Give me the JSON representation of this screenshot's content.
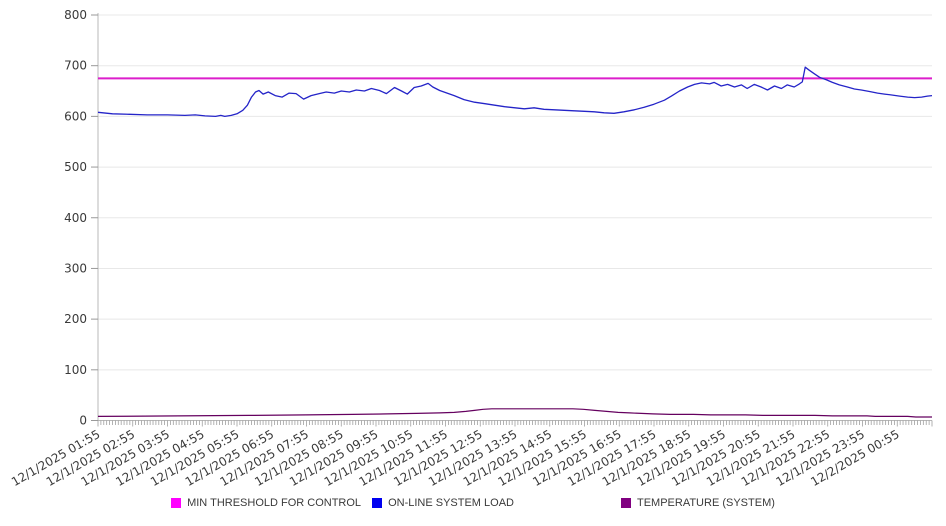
{
  "chart_data": {
    "type": "line",
    "title": "",
    "grid": "horizontal",
    "legend_position": "bottom",
    "y_axis": {
      "min": 0,
      "max": 800,
      "step": 100,
      "tick_labels": [
        "0",
        "100",
        "200",
        "300",
        "400",
        "500",
        "600",
        "700",
        "800"
      ]
    },
    "x_axis": {
      "span_minutes": 1440,
      "minor_tick_minutes": 5,
      "labels": [
        "12/1/2025 01:55",
        "12/1/2025 02:55",
        "12/1/2025 03:55",
        "12/1/2025 04:55",
        "12/1/2025 05:55",
        "12/1/2025 06:55",
        "12/1/2025 07:55",
        "12/1/2025 08:55",
        "12/1/2025 09:55",
        "12/1/2025 10:55",
        "12/1/2025 11:55",
        "12/1/2025 12:55",
        "12/1/2025 13:55",
        "12/1/2025 14:55",
        "12/1/2025 15:55",
        "12/1/2025 16:55",
        "12/1/2025 17:55",
        "12/1/2025 18:55",
        "12/1/2025 19:55",
        "12/1/2025 20:55",
        "12/1/2025 21:55",
        "12/1/2025 22:55",
        "12/1/2025 23:55",
        "12/2/2025 00:55"
      ]
    },
    "series": [
      {
        "name": "MIN THRESHOLD FOR CONTROL",
        "kind": "threshold",
        "value": 675,
        "line_color": "#dc1ecb",
        "swatch_color": "#ff00ff",
        "line_width": 2
      },
      {
        "name": "ON-LINE SYSTEM LOAD",
        "kind": "line",
        "line_color": "#2424c8",
        "swatch_color": "#0000f0",
        "line_width": 1.3,
        "points": [
          [
            0,
            608
          ],
          [
            25,
            605
          ],
          [
            55,
            604
          ],
          [
            85,
            603
          ],
          [
            120,
            603
          ],
          [
            150,
            602
          ],
          [
            168,
            603
          ],
          [
            185,
            601
          ],
          [
            203,
            600
          ],
          [
            212,
            602
          ],
          [
            219,
            600
          ],
          [
            230,
            602
          ],
          [
            240,
            605
          ],
          [
            250,
            612
          ],
          [
            258,
            622
          ],
          [
            265,
            638
          ],
          [
            272,
            648
          ],
          [
            278,
            651
          ],
          [
            285,
            644
          ],
          [
            294,
            648
          ],
          [
            306,
            641
          ],
          [
            318,
            638
          ],
          [
            330,
            646
          ],
          [
            342,
            645
          ],
          [
            355,
            634
          ],
          [
            368,
            641
          ],
          [
            382,
            645
          ],
          [
            394,
            648
          ],
          [
            408,
            646
          ],
          [
            420,
            650
          ],
          [
            434,
            648
          ],
          [
            446,
            652
          ],
          [
            460,
            650
          ],
          [
            472,
            655
          ],
          [
            486,
            651
          ],
          [
            498,
            645
          ],
          [
            512,
            657
          ],
          [
            524,
            650
          ],
          [
            534,
            644
          ],
          [
            546,
            657
          ],
          [
            558,
            660
          ],
          [
            570,
            665
          ],
          [
            578,
            658
          ],
          [
            590,
            651
          ],
          [
            615,
            641
          ],
          [
            632,
            633
          ],
          [
            650,
            628
          ],
          [
            668,
            625
          ],
          [
            685,
            622
          ],
          [
            702,
            619
          ],
          [
            720,
            617
          ],
          [
            736,
            615
          ],
          [
            753,
            617
          ],
          [
            770,
            614
          ],
          [
            788,
            613
          ],
          [
            805,
            612
          ],
          [
            822,
            611
          ],
          [
            840,
            610
          ],
          [
            857,
            609
          ],
          [
            874,
            607
          ],
          [
            891,
            606
          ],
          [
            908,
            609
          ],
          [
            926,
            613
          ],
          [
            943,
            618
          ],
          [
            960,
            624
          ],
          [
            978,
            632
          ],
          [
            990,
            640
          ],
          [
            1004,
            650
          ],
          [
            1018,
            658
          ],
          [
            1030,
            663
          ],
          [
            1042,
            666
          ],
          [
            1056,
            664
          ],
          [
            1064,
            667
          ],
          [
            1076,
            660
          ],
          [
            1087,
            663
          ],
          [
            1099,
            658
          ],
          [
            1111,
            662
          ],
          [
            1121,
            655
          ],
          [
            1133,
            663
          ],
          [
            1145,
            658
          ],
          [
            1156,
            652
          ],
          [
            1168,
            660
          ],
          [
            1180,
            655
          ],
          [
            1190,
            662
          ],
          [
            1202,
            658
          ],
          [
            1211,
            664
          ],
          [
            1216,
            668
          ],
          [
            1221,
            697
          ],
          [
            1228,
            691
          ],
          [
            1237,
            684
          ],
          [
            1246,
            677
          ],
          [
            1258,
            672
          ],
          [
            1268,
            667
          ],
          [
            1280,
            662
          ],
          [
            1294,
            658
          ],
          [
            1306,
            654
          ],
          [
            1318,
            652
          ],
          [
            1332,
            649
          ],
          [
            1346,
            646
          ],
          [
            1358,
            644
          ],
          [
            1372,
            642
          ],
          [
            1384,
            640
          ],
          [
            1398,
            638
          ],
          [
            1410,
            637
          ],
          [
            1422,
            638
          ],
          [
            1432,
            640
          ],
          [
            1440,
            641
          ]
        ]
      },
      {
        "name": "TEMPERATURE (SYSTEM)",
        "kind": "line",
        "line_color": "#65005f",
        "swatch_color": "#800080",
        "line_width": 1.2,
        "points": [
          [
            0,
            8
          ],
          [
            140,
            9
          ],
          [
            260,
            10
          ],
          [
            360,
            11
          ],
          [
            440,
            12
          ],
          [
            500,
            13
          ],
          [
            550,
            14
          ],
          [
            590,
            15
          ],
          [
            615,
            16
          ],
          [
            635,
            18
          ],
          [
            650,
            20
          ],
          [
            665,
            22
          ],
          [
            680,
            23
          ],
          [
            820,
            23
          ],
          [
            838,
            22
          ],
          [
            858,
            20
          ],
          [
            878,
            18
          ],
          [
            898,
            16
          ],
          [
            918,
            15
          ],
          [
            938,
            14
          ],
          [
            958,
            13
          ],
          [
            988,
            12
          ],
          [
            1028,
            12
          ],
          [
            1058,
            11
          ],
          [
            1118,
            11
          ],
          [
            1148,
            10
          ],
          [
            1238,
            10
          ],
          [
            1268,
            9
          ],
          [
            1328,
            9
          ],
          [
            1342,
            8
          ],
          [
            1398,
            8
          ],
          [
            1412,
            7
          ],
          [
            1440,
            7
          ]
        ]
      }
    ]
  },
  "legend": {
    "items": [
      {
        "label": "MIN THRESHOLD FOR CONTROL",
        "color": "#ff00ff"
      },
      {
        "label": "ON-LINE SYSTEM LOAD",
        "color": "#0000f0"
      },
      {
        "label": "TEMPERATURE (SYSTEM)",
        "color": "#800080"
      }
    ]
  },
  "colors": {
    "grid": "#e8e8e8",
    "axis": "#b8b8b8",
    "tick": "#999999",
    "text": "#3a3a3a"
  }
}
